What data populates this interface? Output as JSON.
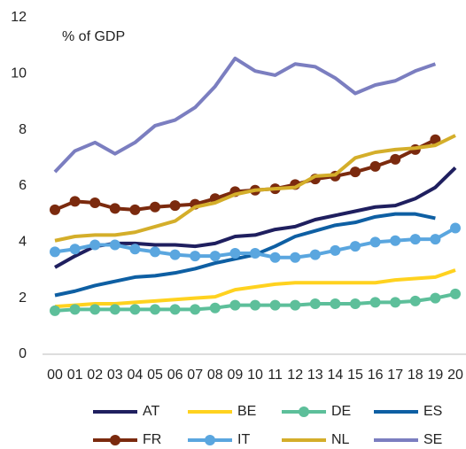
{
  "chart_data": {
    "type": "line",
    "annotation": "% of GDP",
    "categories": [
      "00",
      "01",
      "02",
      "03",
      "04",
      "05",
      "06",
      "07",
      "08",
      "09",
      "10",
      "11",
      "12",
      "13",
      "14",
      "15",
      "16",
      "17",
      "18",
      "19",
      "20"
    ],
    "ylim": [
      0,
      12
    ],
    "yticks": [
      0,
      2,
      4,
      6,
      8,
      10,
      12
    ],
    "series": [
      {
        "name": "AT",
        "color": "#1f1f5f",
        "markers": false,
        "values": [
          3.1,
          3.5,
          3.85,
          3.95,
          3.95,
          3.9,
          3.9,
          3.85,
          3.95,
          4.2,
          4.25,
          4.45,
          4.55,
          4.8,
          4.95,
          5.1,
          5.25,
          5.3,
          5.55,
          5.95,
          6.65
        ]
      },
      {
        "name": "BE",
        "color": "#ffd21f",
        "markers": false,
        "values": [
          1.7,
          1.75,
          1.8,
          1.8,
          1.85,
          1.9,
          1.95,
          2.0,
          2.05,
          2.3,
          2.4,
          2.5,
          2.55,
          2.55,
          2.55,
          2.55,
          2.55,
          2.65,
          2.7,
          2.75,
          3.0
        ]
      },
      {
        "name": "DE",
        "color": "#5dbf9a",
        "markers": true,
        "values": [
          1.55,
          1.6,
          1.6,
          1.6,
          1.6,
          1.6,
          1.6,
          1.6,
          1.65,
          1.75,
          1.75,
          1.75,
          1.75,
          1.8,
          1.8,
          1.8,
          1.85,
          1.85,
          1.9,
          2.0,
          2.15
        ]
      },
      {
        "name": "ES",
        "color": "#0e5fa3",
        "markers": false,
        "values": [
          2.1,
          2.25,
          2.45,
          2.6,
          2.75,
          2.8,
          2.9,
          3.05,
          3.25,
          3.4,
          3.55,
          3.85,
          4.2,
          4.4,
          4.6,
          4.7,
          4.9,
          5.0,
          5.0,
          4.85,
          null
        ]
      },
      {
        "name": "FR",
        "color": "#7b2a0e",
        "markers": true,
        "values": [
          5.15,
          5.45,
          5.4,
          5.2,
          5.15,
          5.25,
          5.3,
          5.35,
          5.55,
          5.8,
          5.85,
          5.9,
          6.05,
          6.25,
          6.35,
          6.5,
          6.7,
          6.95,
          7.3,
          7.65,
          null
        ]
      },
      {
        "name": "IT",
        "color": "#5aa6df",
        "markers": true,
        "values": [
          3.65,
          3.75,
          3.9,
          3.9,
          3.75,
          3.65,
          3.55,
          3.5,
          3.5,
          3.6,
          3.6,
          3.45,
          3.45,
          3.55,
          3.7,
          3.85,
          4.0,
          4.05,
          4.1,
          4.1,
          4.5
        ]
      },
      {
        "name": "NL",
        "color": "#d4ae2a",
        "markers": false,
        "values": [
          4.05,
          4.2,
          4.25,
          4.25,
          4.35,
          4.55,
          4.75,
          5.25,
          5.4,
          5.7,
          5.85,
          5.9,
          5.95,
          6.35,
          6.4,
          7.0,
          7.2,
          7.3,
          7.35,
          7.45,
          7.8
        ]
      },
      {
        "name": "SE",
        "color": "#7b7ec0",
        "markers": false,
        "values": [
          6.5,
          7.25,
          7.55,
          7.15,
          7.55,
          8.15,
          8.35,
          8.8,
          9.55,
          10.55,
          10.1,
          9.95,
          10.35,
          10.25,
          9.85,
          9.3,
          9.6,
          9.75,
          10.1,
          10.35,
          null
        ]
      }
    ]
  }
}
